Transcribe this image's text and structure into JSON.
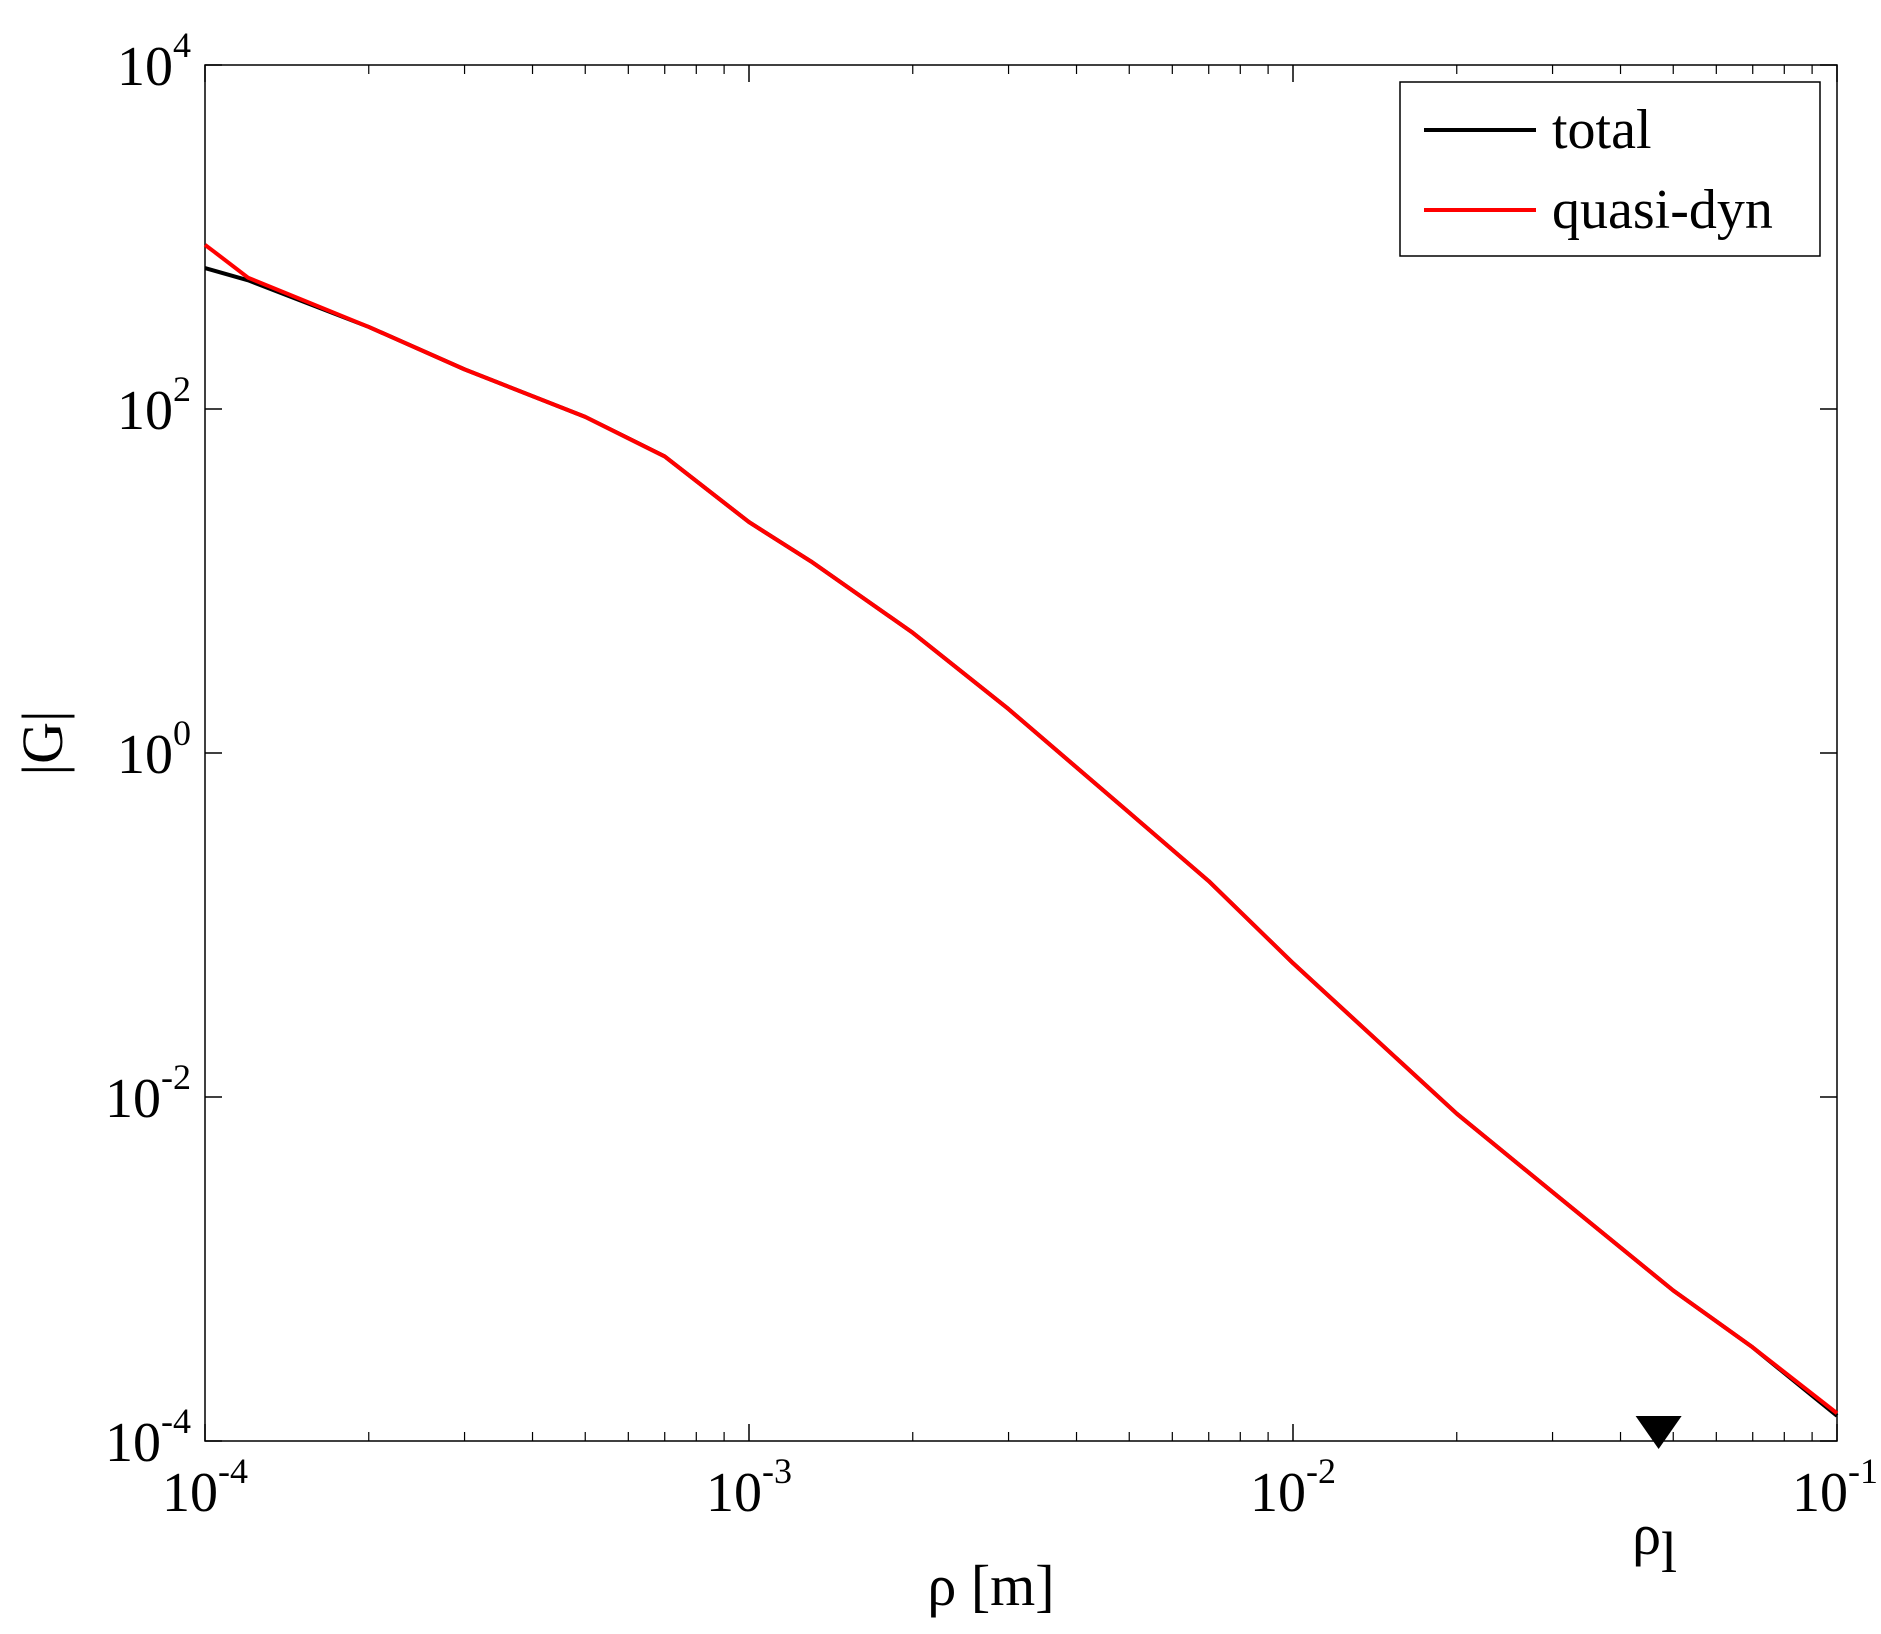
{
  "chart_data": {
    "type": "line",
    "xscale": "log",
    "yscale": "log",
    "xlabel": "ρ [m]",
    "ylabel": "|G|",
    "xlim": [
      0.0001,
      0.1
    ],
    "ylim": [
      0.0001,
      10000
    ],
    "grid": false,
    "legend_position": "top-right",
    "x_ticks": [
      {
        "value": 0.0001,
        "base": "10",
        "exp": "-4"
      },
      {
        "value": 0.001,
        "base": "10",
        "exp": "-3"
      },
      {
        "value": 0.01,
        "base": "10",
        "exp": "-2"
      },
      {
        "value": 0.1,
        "base": "10",
        "exp": "-1"
      }
    ],
    "y_ticks": [
      {
        "value": 0.0001,
        "base": "10",
        "exp": "-4"
      },
      {
        "value": 0.01,
        "base": "10",
        "exp": "-2"
      },
      {
        "value": 1,
        "base": "10",
        "exp": "0"
      },
      {
        "value": 100,
        "base": "10",
        "exp": "2"
      },
      {
        "value": 10000,
        "base": "10",
        "exp": "4"
      }
    ],
    "series": [
      {
        "name": "total",
        "color": "#000000",
        "x": [
          0.0001,
          0.00012,
          0.0002,
          0.0003,
          0.0005,
          0.0007,
          0.001,
          0.0013,
          0.002,
          0.003,
          0.005,
          0.007,
          0.01,
          0.02,
          0.03,
          0.05,
          0.07,
          0.1
        ],
        "y": [
          660,
          560,
          300,
          170,
          90,
          53,
          22,
          13,
          5,
          1.8,
          0.45,
          0.18,
          0.06,
          0.008,
          0.0028,
          0.00075,
          0.00035,
          0.00014
        ]
      },
      {
        "name": "quasi-dyn",
        "color": "#ff0000",
        "x": [
          0.0001,
          0.000104,
          0.00012,
          0.0002,
          0.0003,
          0.0005,
          0.0007,
          0.001,
          0.0013,
          0.002,
          0.003,
          0.005,
          0.007,
          0.01,
          0.02,
          0.03,
          0.05,
          0.07,
          0.1
        ],
        "y": [
          900,
          820,
          580,
          300,
          170,
          90,
          53,
          22,
          13,
          5,
          1.8,
          0.45,
          0.18,
          0.06,
          0.008,
          0.0028,
          0.00075,
          0.00035,
          0.000145
        ]
      }
    ],
    "markers": [
      {
        "x": 0.047,
        "label_base": "ρ",
        "label_sub": "l",
        "shape": "down-triangle",
        "color": "#000000"
      }
    ]
  }
}
